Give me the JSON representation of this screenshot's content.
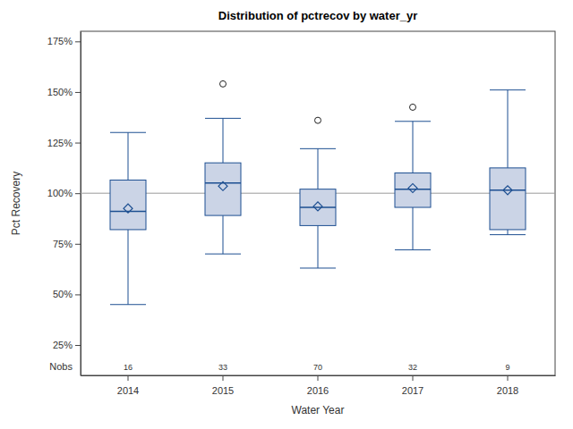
{
  "chart_data": {
    "type": "box",
    "title": "Distribution of pctrecov by water_yr",
    "x_label": "Water Year",
    "y_label": "Pct Recovery",
    "categories": [
      "2014",
      "2015",
      "2016",
      "2017",
      "2018"
    ],
    "whisker_low": [
      45,
      70,
      63,
      72,
      79.5
    ],
    "q1": [
      82,
      89,
      84,
      93,
      82
    ],
    "median": [
      91,
      105,
      93,
      102,
      101.5
    ],
    "q3": [
      106.5,
      115,
      102,
      110,
      112.5
    ],
    "whisker_high": [
      130,
      137,
      122,
      135.5,
      151
    ],
    "mean": [
      92.5,
      103.5,
      93.5,
      102.5,
      101.5
    ],
    "outliers": [
      [],
      [
        154
      ],
      [
        136
      ],
      [
        142.5
      ],
      []
    ],
    "nobs_label": "Nobs",
    "nobs": [
      16,
      33,
      70,
      32,
      9
    ],
    "reference_line": 100,
    "color": "#cbd4e6",
    "grid": false,
    "ylim": [
      10,
      180
    ],
    "yticks": [
      {
        "value": 25,
        "label": "25%"
      },
      {
        "value": 50,
        "label": "50%"
      },
      {
        "value": 75,
        "label": "75%"
      },
      {
        "value": 100,
        "label": "100%"
      },
      {
        "value": 125,
        "label": "125%"
      },
      {
        "value": 150,
        "label": "150%"
      },
      {
        "value": 175,
        "label": "175%"
      }
    ]
  }
}
